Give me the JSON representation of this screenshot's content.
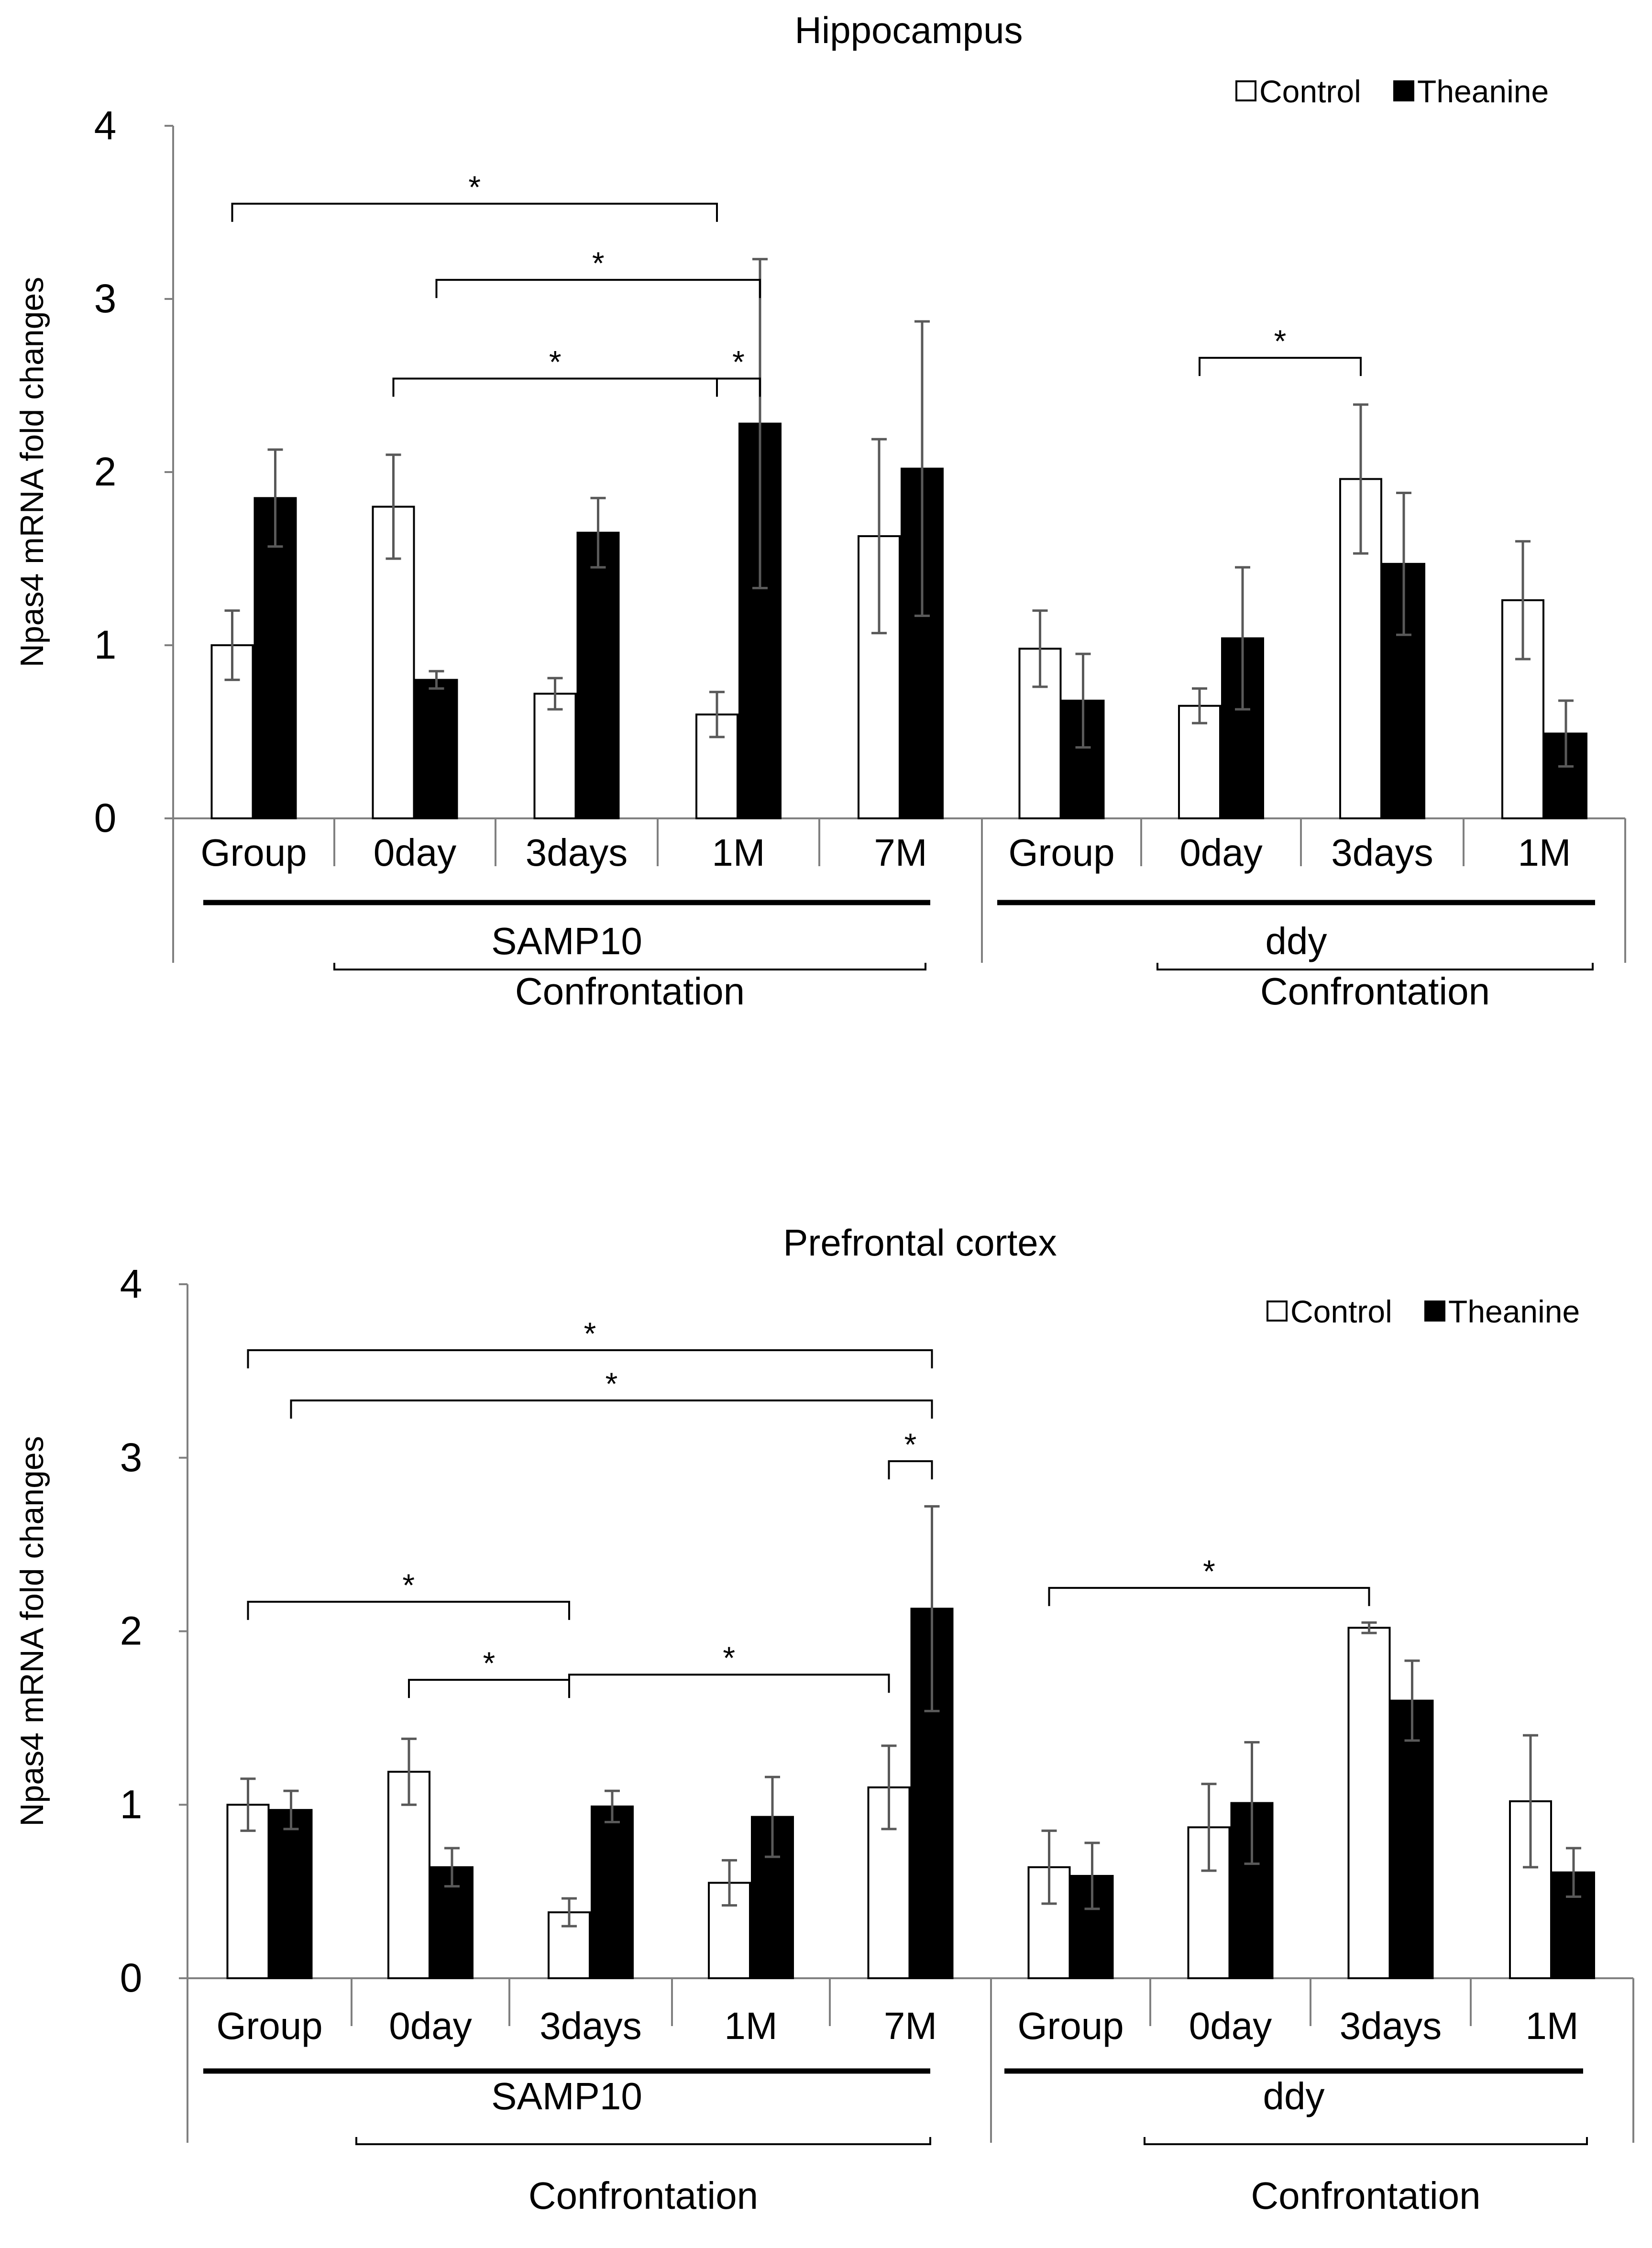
{
  "chart_data": [
    {
      "type": "bar",
      "title": "Hippocampus",
      "ylabel": "Npas4 mRNA fold changes",
      "ylim": [
        0,
        4
      ],
      "yticks": [
        "0",
        "1",
        "2",
        "3",
        "4"
      ],
      "categories": [
        "Group",
        "0day",
        "3days",
        "1M",
        "7M",
        "Group",
        "0day",
        "3days",
        "1M"
      ],
      "groups": [
        {
          "label": "SAMP10",
          "sublabel": "Confrontation"
        },
        {
          "label": "ddy",
          "sublabel": "Confrontation"
        }
      ],
      "series": [
        {
          "name": "Control",
          "color": "#ffffff",
          "values": [
            1.0,
            1.8,
            0.72,
            0.6,
            1.63,
            0.98,
            0.65,
            1.96,
            1.26
          ],
          "errors": [
            0.2,
            0.3,
            0.09,
            0.13,
            0.56,
            0.22,
            0.1,
            0.43,
            0.34
          ]
        },
        {
          "name": "Theanine",
          "color": "#000000",
          "values": [
            1.85,
            0.8,
            1.65,
            2.28,
            2.02,
            0.68,
            1.04,
            1.47,
            0.49
          ],
          "errors": [
            0.28,
            0.05,
            0.2,
            0.95,
            0.85,
            0.27,
            0.41,
            0.41,
            0.19
          ]
        }
      ],
      "legend": "top-right",
      "significance": [
        {
          "label": "*",
          "from": [
            0,
            0
          ],
          "to": [
            3,
            0
          ],
          "y": 3.55
        },
        {
          "label": "*",
          "from": [
            1,
            1
          ],
          "to": [
            3,
            1
          ],
          "y": 3.11
        },
        {
          "label": "*",
          "from": [
            1,
            0
          ],
          "to": [
            3,
            0
          ],
          "y": 2.54
        },
        {
          "label": "*",
          "from": [
            3,
            0
          ],
          "to": [
            3,
            1
          ],
          "y": 2.54
        },
        {
          "label": "*",
          "from": [
            6,
            0
          ],
          "to": [
            7,
            0
          ],
          "y": 2.66
        }
      ]
    },
    {
      "type": "bar",
      "title": "Prefrontal cortex",
      "ylabel": "Npas4 mRNA fold changes",
      "ylim": [
        0,
        4
      ],
      "yticks": [
        "0",
        "1",
        "2",
        "3",
        "4"
      ],
      "categories": [
        "Group",
        "0day",
        "3days",
        "1M",
        "7M",
        "Group",
        "0day",
        "3days",
        "1M"
      ],
      "groups": [
        {
          "label": "SAMP10",
          "sublabel": "Confrontation"
        },
        {
          "label": "ddy",
          "sublabel": "Confrontation"
        }
      ],
      "series": [
        {
          "name": "Control",
          "color": "#ffffff",
          "values": [
            1.0,
            1.19,
            0.38,
            0.55,
            1.1,
            0.64,
            0.87,
            2.02,
            1.02
          ],
          "errors": [
            0.15,
            0.19,
            0.08,
            0.13,
            0.24,
            0.21,
            0.25,
            0.03,
            0.38
          ]
        },
        {
          "name": "Theanine",
          "color": "#000000",
          "values": [
            0.97,
            0.64,
            0.99,
            0.93,
            2.13,
            0.59,
            1.01,
            1.6,
            0.61
          ],
          "errors": [
            0.11,
            0.11,
            0.09,
            0.23,
            0.59,
            0.19,
            0.35,
            0.23,
            0.14
          ]
        }
      ],
      "legend": "top-right",
      "significance": [
        {
          "label": "*",
          "from": [
            0,
            0
          ],
          "to": [
            4,
            1
          ],
          "y": 3.62
        },
        {
          "label": "*",
          "from": [
            0,
            1
          ],
          "to": [
            4,
            1
          ],
          "y": 3.33
        },
        {
          "label": "*",
          "from": [
            4,
            0
          ],
          "to": [
            4,
            1
          ],
          "y": 2.98
        },
        {
          "label": "*",
          "from": [
            0,
            0
          ],
          "to": [
            2,
            0
          ],
          "y": 2.17
        },
        {
          "label": "*",
          "from": [
            1,
            0
          ],
          "to": [
            2,
            0
          ],
          "y": 1.72
        },
        {
          "label": "*",
          "from": [
            2,
            0
          ],
          "to": [
            4,
            0
          ],
          "y": 1.75
        },
        {
          "label": "*",
          "from": [
            5,
            0
          ],
          "to": [
            7,
            0
          ],
          "y": 2.25
        }
      ]
    }
  ]
}
